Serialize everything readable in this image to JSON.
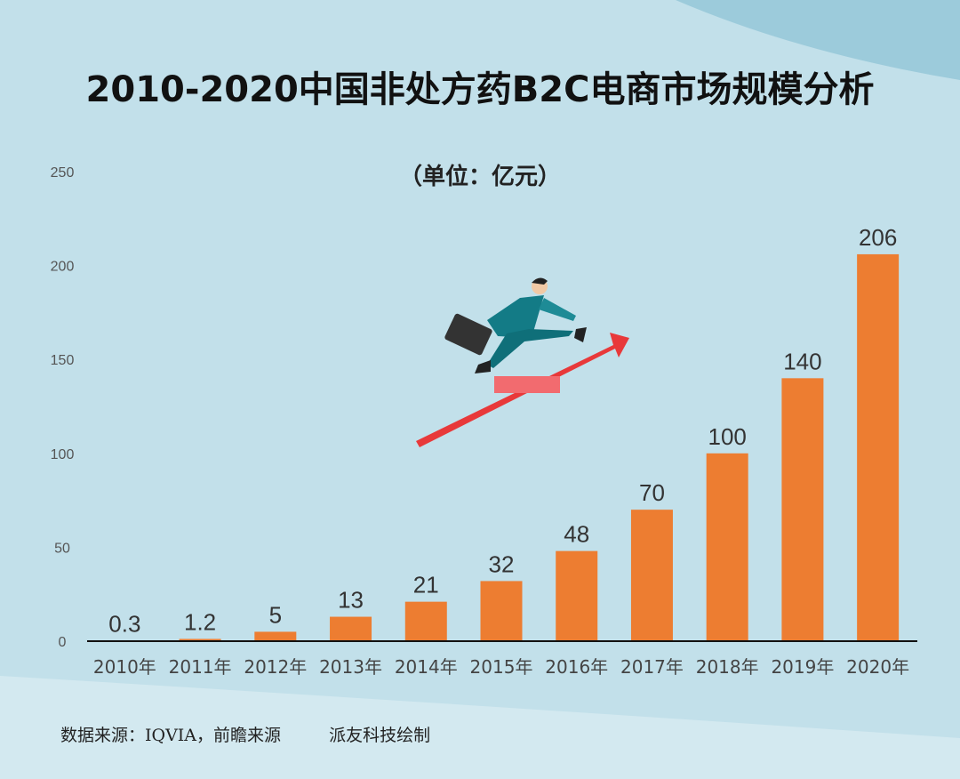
{
  "title": "2010-2020中国非处方药B2C电商市场规模分析",
  "unit_label": "（单位：亿元）",
  "source": "数据来源：IQVIA，前瞻来源",
  "credit": "派友科技绘制",
  "chart_data": {
    "type": "bar",
    "title": "2010-2020中国非处方药B2C电商市场规模分析",
    "ylabel": "（单位：亿元）",
    "categories": [
      "2010年",
      "2011年",
      "2012年",
      "2013年",
      "2014年",
      "2015年",
      "2016年",
      "2017年",
      "2018年",
      "2019年",
      "2020年"
    ],
    "values": [
      0.3,
      1.2,
      5,
      13,
      21,
      32,
      48,
      70,
      100,
      140,
      206
    ],
    "value_labels": [
      "0.3",
      "1.2",
      "5",
      "13",
      "21",
      "32",
      "48",
      "70",
      "100",
      "140",
      "206"
    ],
    "ylim": [
      0,
      250
    ],
    "yticks": [
      "0",
      "50",
      "100",
      "150",
      "200",
      "250"
    ],
    "grid": false,
    "bar_color": "#ed7d31"
  },
  "illustration": "businessman-running-on-red-arrow"
}
